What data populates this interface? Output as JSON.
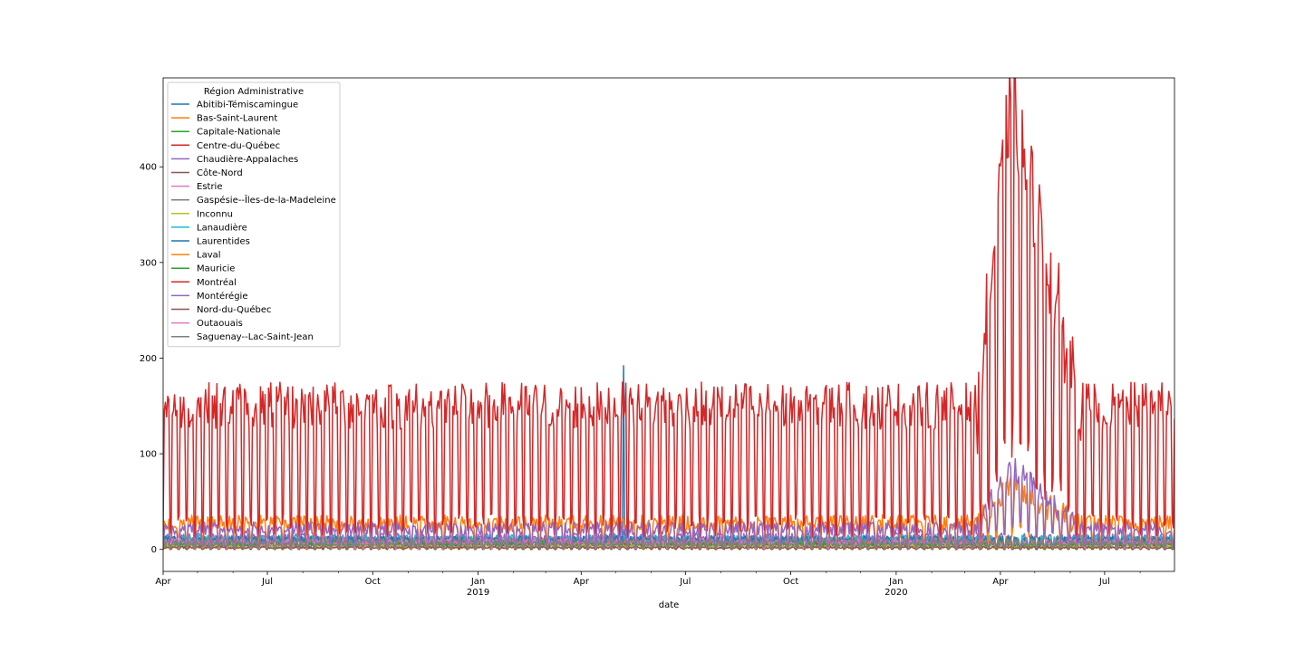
{
  "chart_data": {
    "type": "line",
    "title": "",
    "xlabel": "date",
    "ylabel": "",
    "grid": false,
    "legend_position": "upper-left",
    "legend_title": "Région Administrative",
    "x_start": "2018-04-01",
    "x_end": "2020-08-31",
    "xlim": [
      "2018-04-01",
      "2020-08-31"
    ],
    "ylim": [
      -23,
      493
    ],
    "y_ticks": [
      0,
      100,
      200,
      300,
      400
    ],
    "x_ticks": [
      {
        "date": "2018-04-01",
        "label": "Apr",
        "sublabel": ""
      },
      {
        "date": "2018-07-01",
        "label": "Jul",
        "sublabel": ""
      },
      {
        "date": "2018-10-01",
        "label": "Oct",
        "sublabel": ""
      },
      {
        "date": "2019-01-01",
        "label": "Jan",
        "sublabel": "2019"
      },
      {
        "date": "2019-04-01",
        "label": "Apr",
        "sublabel": ""
      },
      {
        "date": "2019-07-01",
        "label": "Jul",
        "sublabel": ""
      },
      {
        "date": "2019-10-01",
        "label": "Oct",
        "sublabel": ""
      },
      {
        "date": "2020-01-01",
        "label": "Jan",
        "sublabel": "2020"
      },
      {
        "date": "2020-04-01",
        "label": "Apr",
        "sublabel": ""
      },
      {
        "date": "2020-07-01",
        "label": "Jul",
        "sublabel": ""
      }
    ],
    "series": [
      {
        "name": "Abitibi-Témiscamingue",
        "color": "#1f77b4",
        "weekday_level": 6,
        "weekend_level": 1,
        "noise": 3,
        "spike": {
          "date": "2019-05-08",
          "value": 192
        }
      },
      {
        "name": "Bas-Saint-Laurent",
        "color": "#ff7f0e",
        "weekday_level": 10,
        "weekend_level": 3,
        "noise": 4
      },
      {
        "name": "Capitale-Nationale",
        "color": "#2ca02c",
        "weekday_level": 9,
        "weekend_level": 2,
        "noise": 4
      },
      {
        "name": "Centre-du-Québec",
        "color": "#d62728",
        "weekday_level": 7,
        "weekend_level": 2,
        "noise": 3
      },
      {
        "name": "Chaudière-Appalaches",
        "color": "#9467bd",
        "weekday_level": 12,
        "weekend_level": 3,
        "noise": 5
      },
      {
        "name": "Côte-Nord",
        "color": "#8c564b",
        "weekday_level": 4,
        "weekend_level": 1,
        "noise": 2
      },
      {
        "name": "Estrie",
        "color": "#e377c2",
        "weekday_level": 9,
        "weekend_level": 2,
        "noise": 4
      },
      {
        "name": "Gaspésie--Îles-de-la-Madeleine",
        "color": "#7f7f7f",
        "weekday_level": 5,
        "weekend_level": 1,
        "noise": 2
      },
      {
        "name": "Inconnu",
        "color": "#bcbd22",
        "weekday_level": 3,
        "weekend_level": 0,
        "noise": 2
      },
      {
        "name": "Lanaudière",
        "color": "#17becf",
        "weekday_level": 11,
        "weekend_level": 3,
        "noise": 4
      },
      {
        "name": "Laurentides",
        "color": "#1f77b4",
        "weekday_level": 10,
        "weekend_level": 3,
        "noise": 4
      },
      {
        "name": "Laval",
        "color": "#ff7f0e",
        "weekday_level": 28,
        "weekend_level": 10,
        "noise": 8,
        "covid_peak": 65
      },
      {
        "name": "Mauricie",
        "color": "#2ca02c",
        "weekday_level": 7,
        "weekend_level": 2,
        "noise": 3
      },
      {
        "name": "Montréal",
        "color": "#d62728",
        "weekday_level": 150,
        "weekend_level": 25,
        "noise": 25,
        "covid_peak": 470
      },
      {
        "name": "Montérégie",
        "color": "#9467bd",
        "weekday_level": 22,
        "weekend_level": 6,
        "noise": 7,
        "covid_peak": 87
      },
      {
        "name": "Nord-du-Québec",
        "color": "#8c564b",
        "weekday_level": 2,
        "weekend_level": 0,
        "noise": 1
      },
      {
        "name": "Outaouais",
        "color": "#e377c2",
        "weekday_level": 8,
        "weekend_level": 2,
        "noise": 3
      },
      {
        "name": "Saguenay--Lac-Saint-Jean",
        "color": "#7f7f7f",
        "weekday_level": 8,
        "weekend_level": 2,
        "noise": 3
      }
    ]
  }
}
